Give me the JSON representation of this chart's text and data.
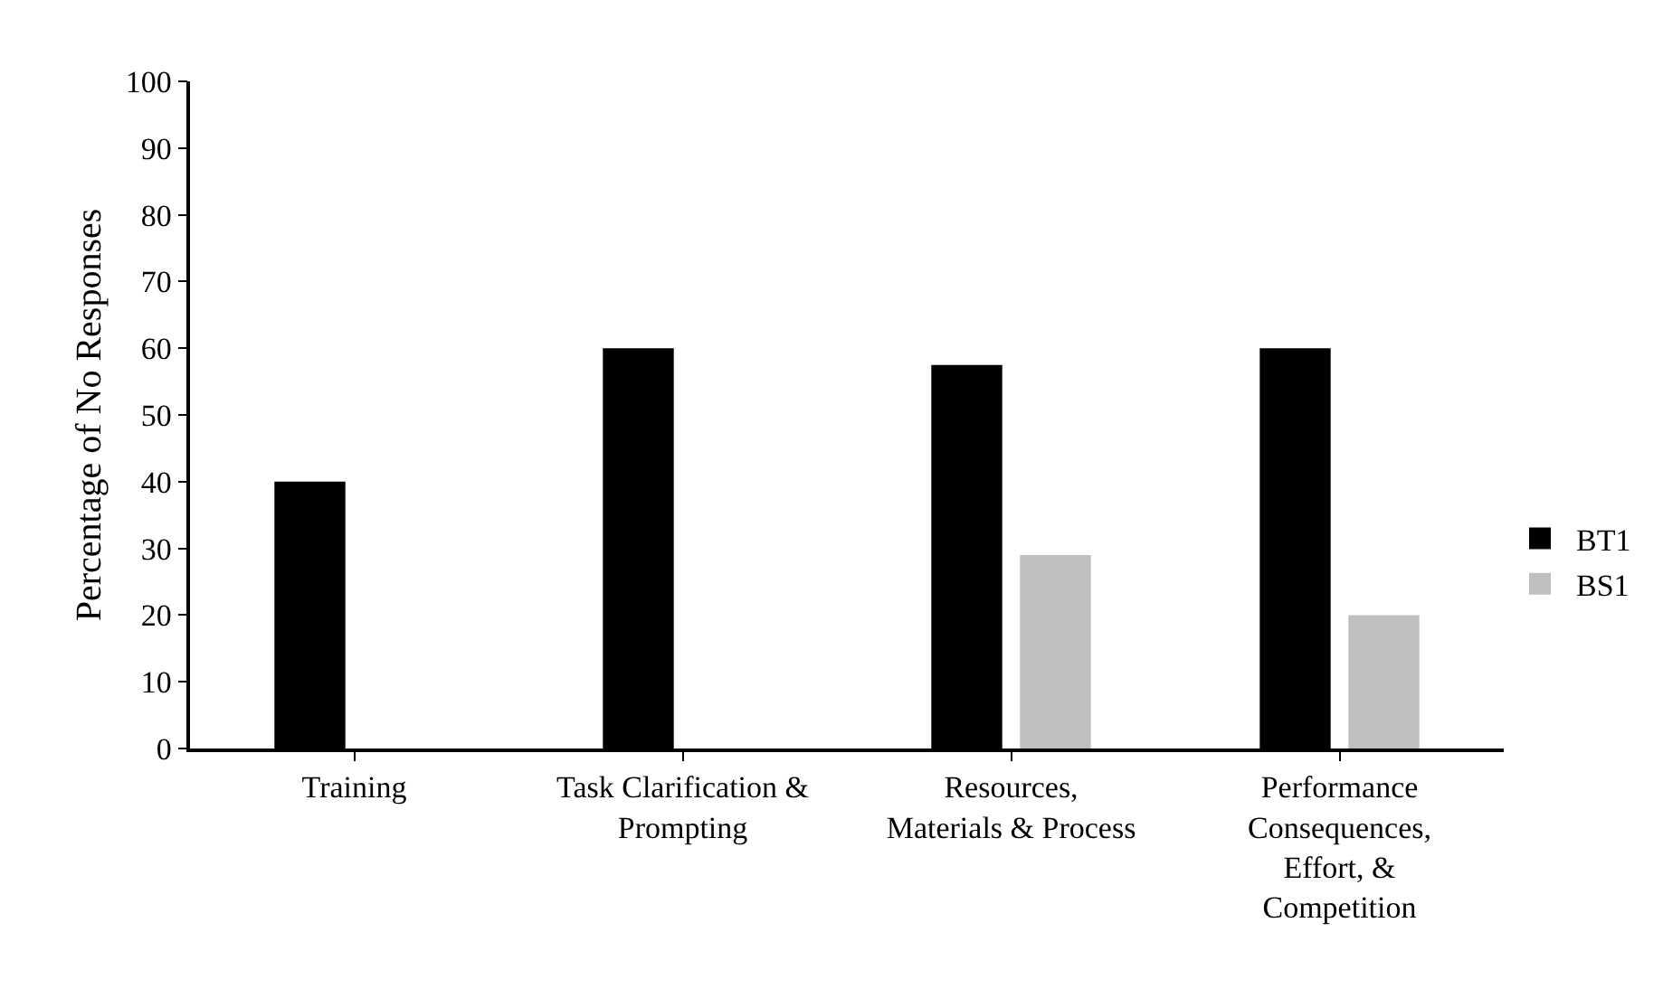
{
  "chart_data": {
    "type": "bar",
    "ylabel": "Percentage of No Responses",
    "categories": [
      "Training",
      "Task Clarification &\nPrompting",
      "Resources,\nMaterials & Process",
      "Performance\nConsequences,\nEffort, &\nCompetition"
    ],
    "series": [
      {
        "name": "BT1",
        "color": "#000000",
        "values": [
          40,
          60,
          57.5,
          60
        ]
      },
      {
        "name": "BS1",
        "color": "#bfbfbf",
        "values": [
          0,
          0,
          29,
          20
        ]
      }
    ],
    "ylim": [
      0,
      100
    ],
    "yticks": [
      0,
      10,
      20,
      30,
      40,
      50,
      60,
      70,
      80,
      90,
      100
    ],
    "legend": "right"
  }
}
